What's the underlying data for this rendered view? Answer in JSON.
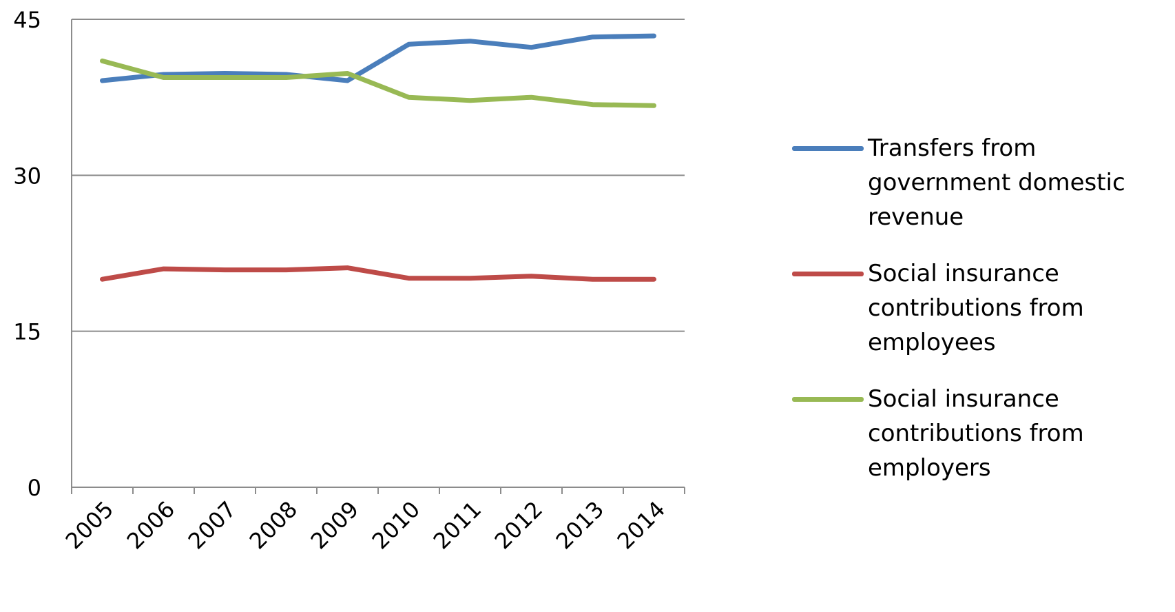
{
  "chart_data": {
    "type": "line",
    "categories": [
      "2005",
      "2006",
      "2007",
      "2008",
      "2009",
      "2010",
      "2011",
      "2012",
      "2013",
      "2014"
    ],
    "ylim": [
      0,
      45
    ],
    "yticks": [
      0,
      15,
      30,
      45
    ],
    "grid": "horizontal",
    "legend_position": "right",
    "series": [
      {
        "name": "Transfers from\ngovernment domestic\nrevenue",
        "color": "#4a7ebb",
        "values": [
          39.1,
          39.7,
          39.8,
          39.7,
          39.1,
          42.6,
          42.9,
          42.3,
          43.3,
          43.4
        ]
      },
      {
        "name": "Social insurance\ncontributions from\nemployees",
        "color": "#be4b48",
        "values": [
          20.0,
          21.0,
          20.9,
          20.9,
          21.1,
          20.1,
          20.1,
          20.3,
          20.0,
          20.0
        ]
      },
      {
        "name": "Social insurance\ncontributions from\nemployers",
        "color": "#98b954",
        "values": [
          41.0,
          39.4,
          39.4,
          39.4,
          39.8,
          37.5,
          37.2,
          37.5,
          36.8,
          36.7
        ]
      }
    ]
  }
}
